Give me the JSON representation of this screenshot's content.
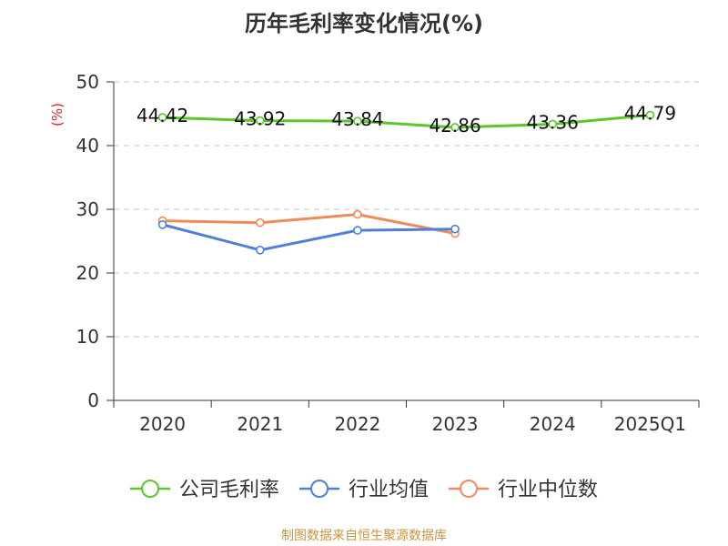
{
  "chart_data": {
    "type": "line",
    "title": "历年毛利率变化情况(%)",
    "ylabel": "(%)",
    "xlabel": "",
    "categories": [
      "2020",
      "2021",
      "2022",
      "2023",
      "2024",
      "2025Q1"
    ],
    "ylim": [
      0,
      50
    ],
    "yticks": [
      0,
      10,
      20,
      30,
      40,
      50
    ],
    "grid": true,
    "legend_position": "bottom",
    "series": [
      {
        "name": "公司毛利率",
        "color": "#5ac72a",
        "values": [
          44.42,
          43.92,
          43.84,
          42.86,
          43.36,
          44.79
        ],
        "labels": [
          "44.42",
          "43.92",
          "43.84",
          "42.86",
          "43.36",
          "44.79"
        ]
      },
      {
        "name": "行业均值",
        "color": "#4e7fdb",
        "values": [
          27.6,
          23.6,
          26.7,
          26.9,
          null,
          null
        ],
        "labels": []
      },
      {
        "name": "行业中位数",
        "color": "#f08a5a",
        "values": [
          28.2,
          27.9,
          29.2,
          26.2,
          null,
          null
        ],
        "labels": []
      }
    ]
  },
  "footer": {
    "source": "制图数据来自恒生聚源数据库"
  }
}
